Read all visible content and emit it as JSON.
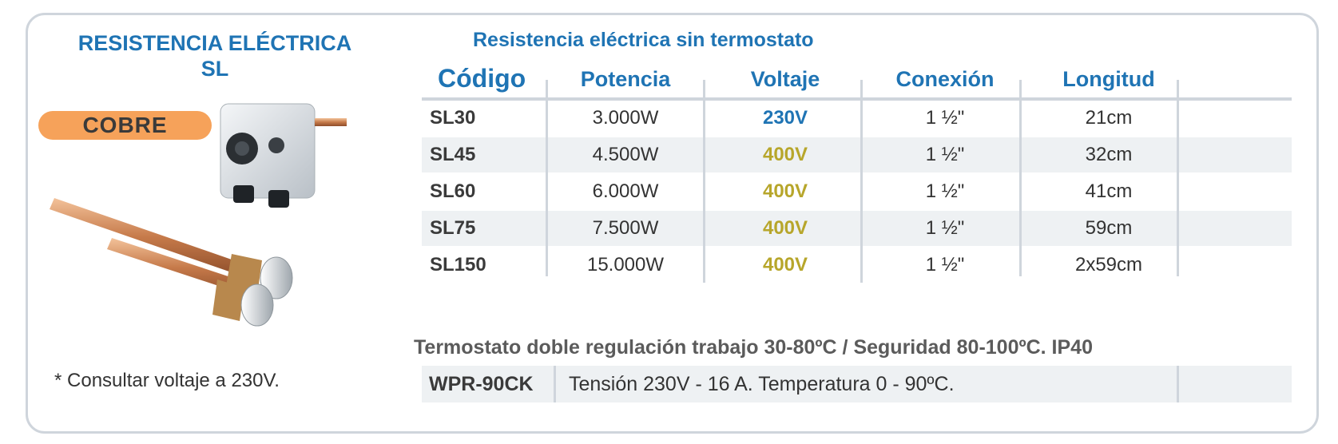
{
  "product": {
    "title_line1": "RESISTENCIA ELÉCTRICA",
    "title_line2": "SL",
    "badge": "COBRE",
    "note": "* Consultar voltaje a 230V.",
    "image_name": "copper-heating-element-with-thermostat"
  },
  "table": {
    "title": "Resistencia eléctrica sin termostato",
    "headers": [
      "Código",
      "Potencia",
      "Voltaje",
      "Conexión",
      "Longitud"
    ],
    "rows": [
      {
        "code": "SL30",
        "power": "3.000W",
        "voltage": "230V",
        "connection": "1 ½\"",
        "length": "21cm"
      },
      {
        "code": "SL45",
        "power": "4.500W",
        "voltage": "400V",
        "connection": "1 ½\"",
        "length": "32cm"
      },
      {
        "code": "SL60",
        "power": "6.000W",
        "voltage": "400V",
        "connection": "1 ½\"",
        "length": "41cm"
      },
      {
        "code": "SL75",
        "power": "7.500W",
        "voltage": "400V",
        "connection": "1 ½\"",
        "length": "59cm"
      },
      {
        "code": "SL150",
        "power": "15.000W",
        "voltage": "400V",
        "connection": "1 ½\"",
        "length": "2x59cm"
      }
    ]
  },
  "thermostat": {
    "title": "Termostato doble regulación trabajo 30-80ºC / Seguridad 80-100ºC. IP40",
    "code": "WPR-90CK",
    "description": "Tensión 230V - 16 A. Temperatura 0 - 90ºC."
  },
  "colors": {
    "accent_blue": "#1f74b4",
    "voltage_400": "#b7a62b",
    "badge_orange": "#f6a25a",
    "border_grey": "#cfd5dc",
    "row_shade": "#eef1f3"
  }
}
